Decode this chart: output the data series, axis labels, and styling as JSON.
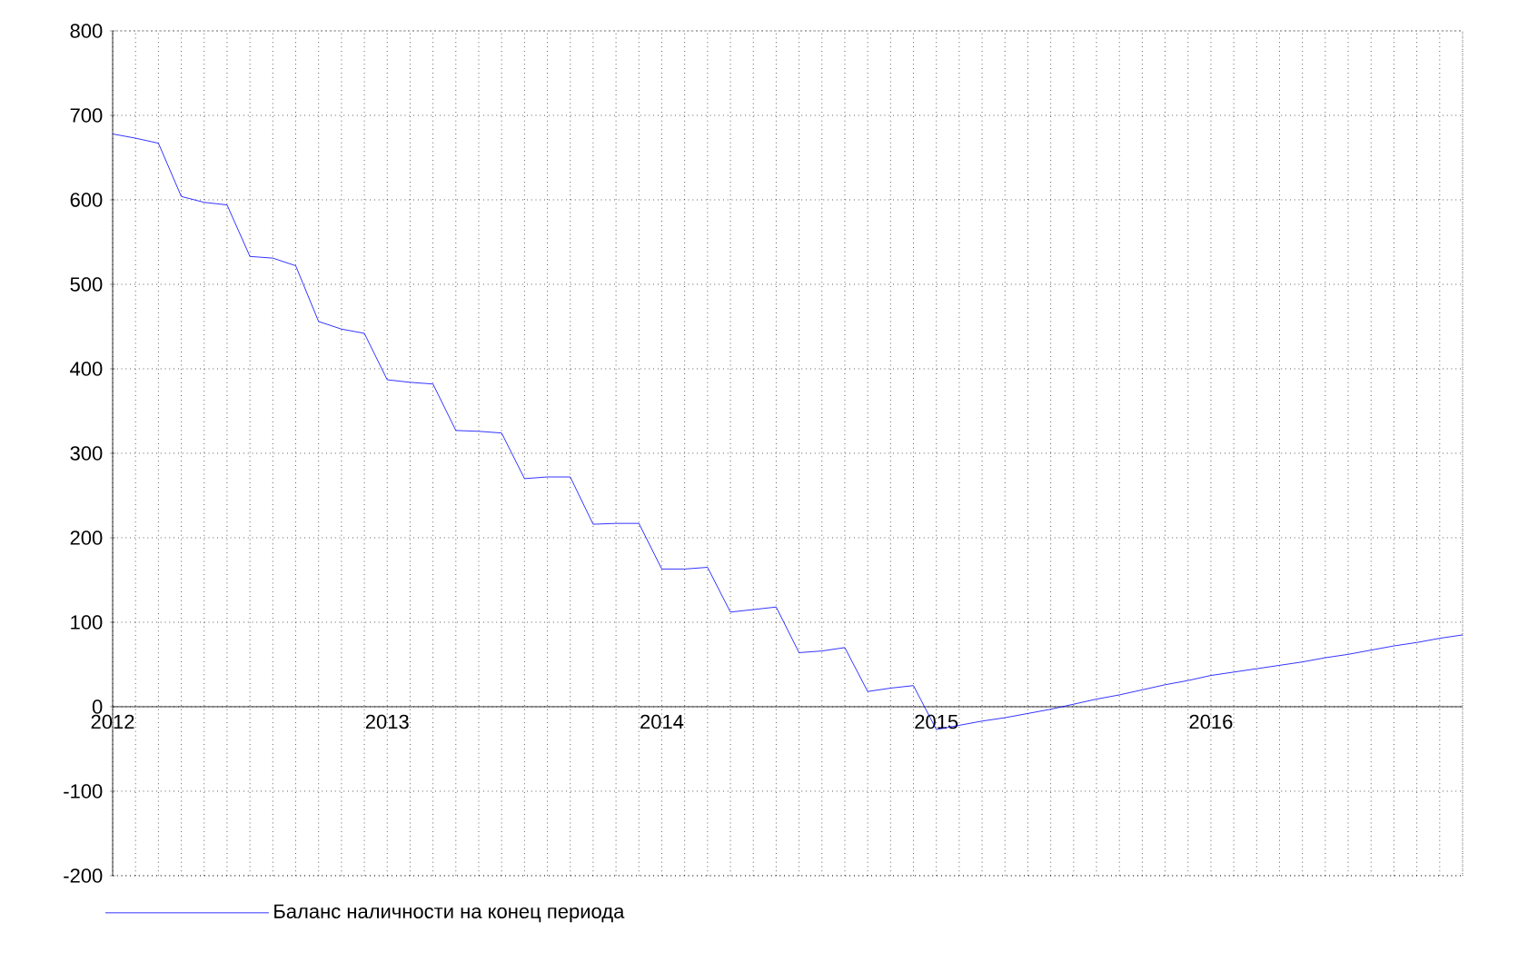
{
  "chart_data": {
    "type": "line",
    "x": [
      "2012-01",
      "2012-02",
      "2012-03",
      "2012-04",
      "2012-05",
      "2012-06",
      "2012-07",
      "2012-08",
      "2012-09",
      "2012-10",
      "2012-11",
      "2012-12",
      "2013-01",
      "2013-02",
      "2013-03",
      "2013-04",
      "2013-05",
      "2013-06",
      "2013-07",
      "2013-08",
      "2013-09",
      "2013-10",
      "2013-11",
      "2013-12",
      "2014-01",
      "2014-02",
      "2014-03",
      "2014-04",
      "2014-05",
      "2014-06",
      "2014-07",
      "2014-08",
      "2014-09",
      "2014-10",
      "2014-11",
      "2014-12",
      "2015-01",
      "2015-02",
      "2015-03",
      "2015-04",
      "2015-05",
      "2015-06",
      "2015-07",
      "2015-08",
      "2015-09",
      "2015-10",
      "2015-11",
      "2015-12",
      "2016-01",
      "2016-02",
      "2016-03",
      "2016-04",
      "2016-05",
      "2016-06",
      "2016-07",
      "2016-08",
      "2016-09",
      "2016-10",
      "2016-11",
      "2016-12"
    ],
    "series": [
      {
        "name": "Баланс наличности на конец периода",
        "color": "#0000ff",
        "values": [
          678,
          673,
          667,
          604,
          597,
          594,
          533,
          531,
          522,
          456,
          447,
          442,
          387,
          384,
          382,
          327,
          326,
          324,
          270,
          272,
          272,
          216,
          217,
          217,
          163,
          163,
          165,
          112,
          115,
          118,
          64,
          66,
          70,
          18,
          22,
          25,
          -27,
          -22,
          -17,
          -13,
          -8,
          -3,
          3,
          9,
          14,
          20,
          26,
          31,
          37,
          41,
          45,
          49,
          53,
          58,
          62,
          67,
          72,
          76,
          81,
          85
        ]
      }
    ],
    "xlim": [
      "2012-01",
      "2016-12"
    ],
    "xticks": [
      {
        "value": "2012-01",
        "label": "2012"
      },
      {
        "value": "2012-02",
        "label": null
      },
      {
        "value": "2012-03",
        "label": null
      },
      {
        "value": "2012-04",
        "label": null
      },
      {
        "value": "2012-05",
        "label": null
      },
      {
        "value": "2012-06",
        "label": null
      },
      {
        "value": "2012-07",
        "label": null
      },
      {
        "value": "2012-08",
        "label": null
      },
      {
        "value": "2012-09",
        "label": null
      },
      {
        "value": "2012-10",
        "label": null
      },
      {
        "value": "2012-11",
        "label": null
      },
      {
        "value": "2012-12",
        "label": null
      },
      {
        "value": "2013-01",
        "label": "2013"
      },
      {
        "value": "2013-02",
        "label": null
      },
      {
        "value": "2013-03",
        "label": null
      },
      {
        "value": "2013-04",
        "label": null
      },
      {
        "value": "2013-05",
        "label": null
      },
      {
        "value": "2013-06",
        "label": null
      },
      {
        "value": "2013-07",
        "label": null
      },
      {
        "value": "2013-08",
        "label": null
      },
      {
        "value": "2013-09",
        "label": null
      },
      {
        "value": "2013-10",
        "label": null
      },
      {
        "value": "2013-11",
        "label": null
      },
      {
        "value": "2013-12",
        "label": null
      },
      {
        "value": "2014-01",
        "label": "2014"
      },
      {
        "value": "2014-02",
        "label": null
      },
      {
        "value": "2014-03",
        "label": null
      },
      {
        "value": "2014-04",
        "label": null
      },
      {
        "value": "2014-05",
        "label": null
      },
      {
        "value": "2014-06",
        "label": null
      },
      {
        "value": "2014-07",
        "label": null
      },
      {
        "value": "2014-08",
        "label": null
      },
      {
        "value": "2014-09",
        "label": null
      },
      {
        "value": "2014-10",
        "label": null
      },
      {
        "value": "2014-11",
        "label": null
      },
      {
        "value": "2014-12",
        "label": null
      },
      {
        "value": "2015-01",
        "label": "2015"
      },
      {
        "value": "2015-02",
        "label": null
      },
      {
        "value": "2015-03",
        "label": null
      },
      {
        "value": "2015-04",
        "label": null
      },
      {
        "value": "2015-05",
        "label": null
      },
      {
        "value": "2015-06",
        "label": null
      },
      {
        "value": "2015-07",
        "label": null
      },
      {
        "value": "2015-08",
        "label": null
      },
      {
        "value": "2015-09",
        "label": null
      },
      {
        "value": "2015-10",
        "label": null
      },
      {
        "value": "2015-11",
        "label": null
      },
      {
        "value": "2015-12",
        "label": null
      },
      {
        "value": "2016-01",
        "label": "2016"
      },
      {
        "value": "2016-02",
        "label": null
      },
      {
        "value": "2016-03",
        "label": null
      },
      {
        "value": "2016-04",
        "label": null
      },
      {
        "value": "2016-05",
        "label": null
      },
      {
        "value": "2016-06",
        "label": null
      },
      {
        "value": "2016-07",
        "label": null
      },
      {
        "value": "2016-08",
        "label": null
      },
      {
        "value": "2016-09",
        "label": null
      },
      {
        "value": "2016-10",
        "label": null
      },
      {
        "value": "2016-11",
        "label": null
      },
      {
        "value": "2016-12",
        "label": null
      }
    ],
    "ylim": [
      -200,
      800
    ],
    "yticks": [
      -200,
      -100,
      0,
      100,
      200,
      300,
      400,
      500,
      600,
      700,
      800
    ],
    "grid": true,
    "legend": "bottom left",
    "marker": "none",
    "line_style": "solid"
  }
}
